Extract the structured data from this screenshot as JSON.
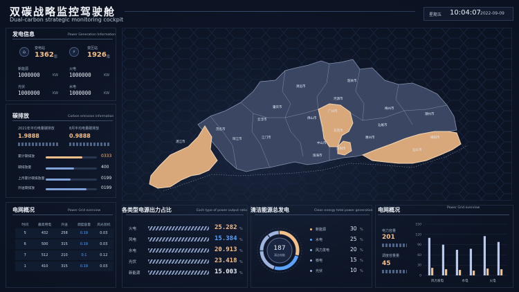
{
  "header": {
    "title_cn": "双碳战略监控驾驶舱",
    "title_en": "Dual-carbon strategic monitoring cockpit",
    "weekday": "星期五",
    "time": "10:04:07",
    "date": "2022-09-09"
  },
  "power_gen": {
    "title": "发电信息",
    "subtitle": "Power Generation Information",
    "plant_label": "变电站",
    "plant_value": "1362",
    "plant_unit": "座",
    "substation_label": "变压站",
    "substation_value": "1926",
    "substation_unit": "座",
    "items": [
      {
        "label": "新能源",
        "value": "1000000"
      },
      {
        "label": "火电",
        "value": "1000000"
      },
      {
        "label": "光伏",
        "value": "1000000"
      },
      {
        "label": "水电",
        "value": "1000000"
      }
    ],
    "unit": "KW"
  },
  "carbon": {
    "title": "碳排放",
    "subtitle": "Carbon emission information",
    "left_label": "2021年平均电量碳排放",
    "left_value": "1.9888",
    "right_label": "8月平均电量碳排放",
    "right_value": "0.9888",
    "rows": [
      {
        "label": "累计碳排放",
        "value": "0333",
        "fill": 0.72,
        "color": "#f4c08a"
      },
      {
        "label": "碳排放量",
        "value": "400",
        "fill": 0.55,
        "color": "#7fa2d8"
      },
      {
        "label": "上月累计碳排放量",
        "value": "0199",
        "fill": 0.48,
        "color": "#7fa2d8"
      },
      {
        "label": "外送碳排放",
        "value": "0199",
        "fill": 0.8,
        "color": "#7fa2d8"
      }
    ]
  },
  "grid_left": {
    "title": "电网概况",
    "subtitle": "Power Grid overview",
    "columns": [
      "时间",
      "最高用电",
      "外送",
      "调度容量",
      "风光装机"
    ],
    "rows": [
      [
        "5",
        "432",
        "258",
        "0.19",
        "0.03"
      ],
      [
        "6",
        "500",
        "315",
        "0.19",
        "0.03"
      ],
      [
        "7",
        "512",
        "210",
        "0.1",
        "0.12"
      ],
      [
        "1",
        "410",
        "315",
        "0.19",
        "0.03"
      ]
    ]
  },
  "map": {
    "cities": [
      "清远市",
      "韶关市",
      "河源市",
      "梅州市",
      "潮州市",
      "揭阳市",
      "汕头市",
      "汕尾市",
      "惠州市",
      "东莞市",
      "广州市",
      "佛山市",
      "肇庆市",
      "云浮市",
      "茂名市",
      "湛江市",
      "阳江市",
      "江门市",
      "中山市",
      "珠海市",
      "深圳市"
    ]
  },
  "output_ratio": {
    "title": "各类型电源出力占比",
    "subtitle": "Each type of power output ratio",
    "rows": [
      {
        "label": "火电",
        "value": "25.282",
        "color": "#f4c08a"
      },
      {
        "label": "风电",
        "value": "15.384",
        "color": "#5aa4ff"
      },
      {
        "label": "水电",
        "value": "20.913",
        "color": "#f4c08a"
      },
      {
        "label": "光伏",
        "value": "23.418",
        "color": "#f4c08a"
      },
      {
        "label": "新能源",
        "value": "15.003",
        "color": "#e9eef6"
      }
    ],
    "unit": "%"
  },
  "clean_energy": {
    "title": "清洁能源总发电",
    "subtitle": "Clean energy total power generation",
    "center_value": "187",
    "center_label": "清洁电能",
    "legend": [
      {
        "label": "新能源",
        "pct": "30",
        "color": "#f4c08a"
      },
      {
        "label": "水电",
        "pct": "25",
        "color": "#5aa4ff"
      },
      {
        "label": "风力发电",
        "pct": "20",
        "color": "#9fb4dd"
      },
      {
        "label": "核电",
        "pct": "15",
        "color": "#9fb4dd"
      },
      {
        "label": "光伏",
        "pct": "10",
        "color": "#9fb4dd"
      }
    ],
    "pct_unit": "%"
  },
  "grid_right": {
    "title": "电网概况",
    "subtitle": "Power Grid overview",
    "label1": "电力容量",
    "value1": "201",
    "label2": "调度容量量",
    "value2": "45",
    "chart_data": {
      "type": "bar",
      "categories": [
        "风力发电",
        "",
        "水电",
        "",
        "火电",
        ""
      ],
      "series": [
        {
          "values": [
            110,
            90,
            75,
            78,
            115,
            98
          ],
          "color": "#b9c9ef"
        },
        {
          "values": [
            22,
            18,
            16,
            14,
            20,
            18
          ],
          "color": "#f4c08a"
        }
      ],
      "ylim": [
        0,
        150
      ],
      "yticks": [
        "150",
        "120",
        "90",
        "60",
        "30",
        "0"
      ]
    }
  }
}
